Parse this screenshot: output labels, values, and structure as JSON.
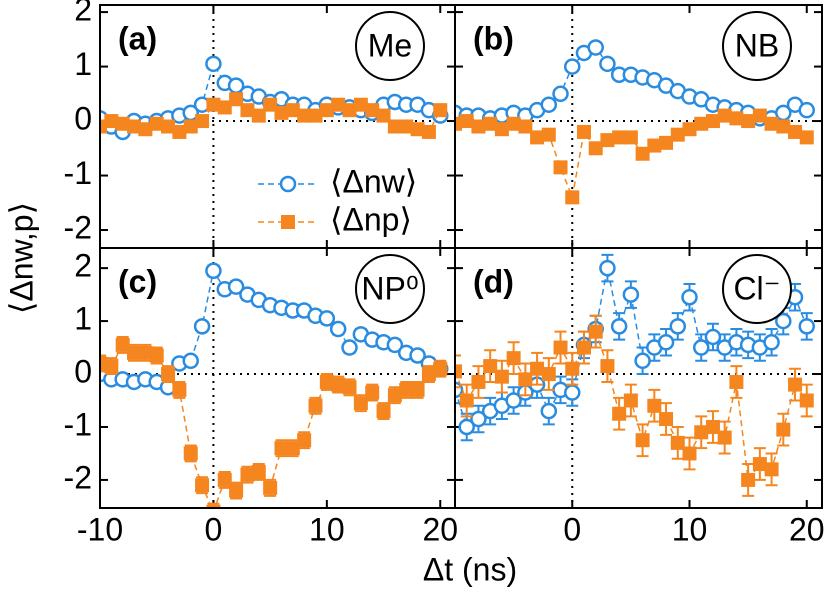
{
  "axis_labels": {
    "x": "Δt (ns)",
    "y": "⟨Δnw,p⟩"
  },
  "chart_data": [
    {
      "type": "line",
      "panel": "(a)",
      "badge": "Me",
      "legend": true,
      "x_tick_labels": false,
      "y_tick_labels": true,
      "x": [
        -10,
        -9,
        -8,
        -7,
        -6,
        -5,
        -4,
        -3,
        -2,
        -1,
        0,
        1,
        2,
        3,
        4,
        5,
        6,
        7,
        8,
        9,
        10,
        11,
        12,
        13,
        14,
        15,
        16,
        17,
        18,
        19,
        20
      ],
      "xlim": [
        -10,
        21.3
      ],
      "ylim": [
        -2.33,
        2.13
      ],
      "xticks": [
        -10,
        0,
        10,
        20
      ],
      "yticks": [
        -2,
        -1,
        0,
        1,
        2
      ],
      "series": [
        {
          "name": "⟨Δnw⟩",
          "marker": "circle",
          "color": "#2a8ce0",
          "values": [
            0.05,
            -0.1,
            -0.2,
            0.0,
            -0.05,
            0.0,
            0.05,
            0.1,
            0.15,
            0.3,
            1.05,
            0.7,
            0.65,
            0.5,
            0.45,
            0.35,
            0.4,
            0.3,
            0.3,
            0.2,
            0.3,
            0.25,
            0.25,
            0.2,
            0.15,
            0.3,
            0.35,
            0.3,
            0.3,
            0.2,
            0.1
          ]
        },
        {
          "name": "⟨Δnp⟩",
          "marker": "square",
          "color": "#f5861f",
          "values": [
            -0.1,
            0.0,
            -0.05,
            -0.1,
            -0.15,
            -0.05,
            -0.1,
            -0.2,
            -0.1,
            0.0,
            0.3,
            0.25,
            0.4,
            0.2,
            0.1,
            0.3,
            0.15,
            0.2,
            0.1,
            0.1,
            0.2,
            0.3,
            0.2,
            0.3,
            0.2,
            0.1,
            -0.1,
            -0.1,
            -0.15,
            -0.2,
            0.2
          ]
        }
      ]
    },
    {
      "type": "line",
      "panel": "(b)",
      "badge": "NB",
      "legend": false,
      "x_tick_labels": false,
      "y_tick_labels": false,
      "x": [
        -10,
        -9,
        -8,
        -7,
        -6,
        -5,
        -4,
        -3,
        -2,
        -1,
        0,
        1,
        2,
        3,
        4,
        5,
        6,
        7,
        8,
        9,
        10,
        11,
        12,
        13,
        14,
        15,
        16,
        17,
        18,
        19,
        20
      ],
      "xlim": [
        -10,
        21.3
      ],
      "ylim": [
        -2.33,
        2.13
      ],
      "xticks": [
        0,
        10,
        20
      ],
      "yticks": [
        -2,
        -1,
        0,
        1,
        2
      ],
      "series": [
        {
          "name": "⟨Δnw⟩",
          "marker": "circle",
          "color": "#2a8ce0",
          "values": [
            0.15,
            0.1,
            0.1,
            0.05,
            0.1,
            0.15,
            0.1,
            0.2,
            0.3,
            0.5,
            1.0,
            1.25,
            1.35,
            1.05,
            0.85,
            0.85,
            0.8,
            0.75,
            0.65,
            0.55,
            0.45,
            0.4,
            0.3,
            0.25,
            0.2,
            0.15,
            0.05,
            0.05,
            0.15,
            0.3,
            0.2
          ]
        },
        {
          "name": "⟨Δnp⟩",
          "marker": "square",
          "color": "#f5861f",
          "values": [
            -0.05,
            0.0,
            -0.1,
            -0.05,
            -0.15,
            -0.05,
            -0.1,
            -0.3,
            -0.25,
            -0.85,
            -1.4,
            -0.2,
            -0.5,
            -0.35,
            -0.3,
            -0.3,
            -0.6,
            -0.45,
            -0.4,
            -0.25,
            -0.15,
            -0.05,
            0.0,
            0.1,
            0.05,
            0.0,
            0.1,
            -0.05,
            -0.1,
            -0.2,
            -0.3
          ]
        }
      ]
    },
    {
      "type": "line",
      "panel": "(c)",
      "badge": "NP⁰",
      "legend": false,
      "x_tick_labels": true,
      "y_tick_labels": true,
      "x": [
        -10,
        -9,
        -8,
        -7,
        -6,
        -5,
        -4,
        -3,
        -2,
        -1,
        0,
        1,
        2,
        3,
        4,
        5,
        6,
        7,
        8,
        9,
        10,
        11,
        12,
        13,
        14,
        15,
        16,
        17,
        18,
        19,
        20
      ],
      "xlim": [
        -10,
        21.3
      ],
      "ylim": [
        -2.53,
        2.38
      ],
      "xticks": [
        -10,
        0,
        10,
        20
      ],
      "yticks": [
        -2,
        -1,
        0,
        1,
        2
      ],
      "series": [
        {
          "name": "⟨Δnw⟩",
          "marker": "circle",
          "color": "#2a8ce0",
          "values": [
            0.0,
            -0.1,
            -0.1,
            -0.15,
            -0.1,
            -0.15,
            -0.25,
            0.2,
            0.25,
            0.9,
            1.95,
            1.6,
            1.65,
            1.5,
            1.4,
            1.3,
            1.25,
            1.2,
            1.2,
            1.1,
            1.05,
            0.85,
            0.5,
            0.75,
            0.65,
            0.6,
            0.55,
            0.4,
            0.35,
            0.2,
            0.1
          ],
          "errors": [
            0.08,
            0.08,
            0.08,
            0.08,
            0.08,
            0.08,
            0.08,
            0.08,
            0.08,
            0.08,
            0.1,
            0.1,
            0.1,
            0.1,
            0.1,
            0.1,
            0.1,
            0.1,
            0.1,
            0.1,
            0.1,
            0.1,
            0.1,
            0.1,
            0.1,
            0.1,
            0.1,
            0.1,
            0.1,
            0.1,
            0.1
          ]
        },
        {
          "name": "⟨Δnp⟩",
          "marker": "square",
          "color": "#f5861f",
          "values": [
            0.2,
            0.15,
            0.55,
            0.4,
            0.4,
            0.35,
            0.0,
            -0.3,
            -1.5,
            -2.1,
            -2.6,
            -2.0,
            -2.2,
            -1.9,
            -1.85,
            -2.15,
            -1.4,
            -1.4,
            -1.25,
            -0.6,
            -0.15,
            -0.2,
            -0.25,
            -0.55,
            -0.35,
            -0.7,
            -0.4,
            -0.3,
            -0.3,
            0.0,
            0.1
          ],
          "errors": [
            0.15,
            0.15,
            0.15,
            0.15,
            0.15,
            0.15,
            0.15,
            0.15,
            0.15,
            0.15,
            0.15,
            0.15,
            0.15,
            0.15,
            0.15,
            0.15,
            0.15,
            0.15,
            0.15,
            0.15,
            0.15,
            0.15,
            0.15,
            0.15,
            0.15,
            0.15,
            0.15,
            0.15,
            0.15,
            0.15,
            0.15
          ]
        }
      ]
    },
    {
      "type": "line",
      "panel": "(d)",
      "badge": "Cl⁻",
      "legend": false,
      "x_tick_labels": true,
      "y_tick_labels": false,
      "x": [
        -10,
        -9,
        -8,
        -7,
        -6,
        -5,
        -4,
        -3,
        -2,
        -1,
        0,
        1,
        2,
        3,
        4,
        5,
        6,
        7,
        8,
        9,
        10,
        11,
        12,
        13,
        14,
        15,
        16,
        17,
        18,
        19,
        20
      ],
      "xlim": [
        -10,
        21.3
      ],
      "ylim": [
        -2.53,
        2.38
      ],
      "xticks": [
        0,
        10,
        20
      ],
      "yticks": [
        -2,
        -1,
        0,
        1,
        2
      ],
      "series": [
        {
          "name": "⟨Δnw⟩",
          "marker": "circle",
          "color": "#2a8ce0",
          "values": [
            -0.3,
            -1.0,
            -0.85,
            -0.7,
            -0.6,
            -0.5,
            -0.35,
            -0.2,
            -0.7,
            -0.3,
            -0.35,
            0.55,
            0.85,
            2.0,
            0.9,
            1.5,
            0.25,
            0.5,
            0.6,
            0.9,
            1.45,
            0.5,
            0.7,
            0.5,
            0.6,
            0.55,
            0.5,
            0.6,
            1.0,
            1.45,
            0.9
          ],
          "errors": [
            0.25,
            0.25,
            0.25,
            0.25,
            0.25,
            0.25,
            0.25,
            0.25,
            0.25,
            0.25,
            0.25,
            0.25,
            0.25,
            0.25,
            0.25,
            0.25,
            0.25,
            0.25,
            0.25,
            0.25,
            0.25,
            0.25,
            0.25,
            0.25,
            0.25,
            0.25,
            0.25,
            0.25,
            0.25,
            0.25,
            0.25
          ]
        },
        {
          "name": "⟨Δnp⟩",
          "marker": "square",
          "color": "#f5861f",
          "values": [
            0.05,
            -0.5,
            -0.15,
            0.15,
            -0.05,
            0.3,
            -0.1,
            0.1,
            0.0,
            0.5,
            0.1,
            0.5,
            0.8,
            0.15,
            -0.75,
            -0.5,
            -1.25,
            -0.6,
            -0.85,
            -1.3,
            -1.5,
            -1.1,
            -1.0,
            -1.2,
            -0.15,
            -2.0,
            -1.7,
            -1.8,
            -1.05,
            -0.2,
            -0.5
          ],
          "errors": [
            0.3,
            0.3,
            0.3,
            0.3,
            0.3,
            0.3,
            0.3,
            0.3,
            0.3,
            0.3,
            0.3,
            0.3,
            0.3,
            0.3,
            0.3,
            0.3,
            0.3,
            0.3,
            0.3,
            0.3,
            0.3,
            0.3,
            0.3,
            0.3,
            0.3,
            0.3,
            0.3,
            0.3,
            0.3,
            0.3,
            0.3
          ]
        }
      ]
    }
  ]
}
